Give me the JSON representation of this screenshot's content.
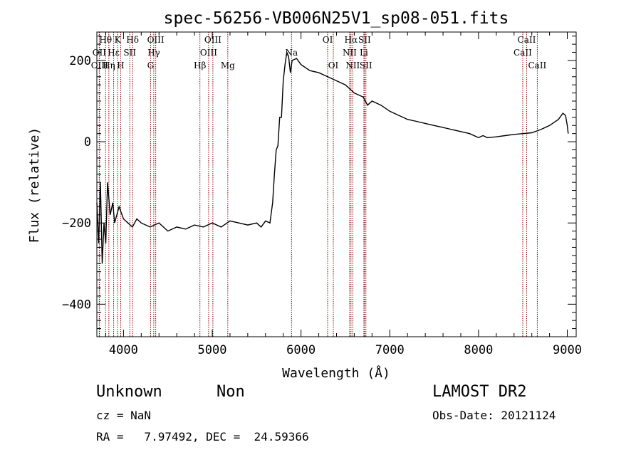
{
  "chart_data": {
    "type": "line",
    "title": "spec-56256-VB006N25V1_sp08-051.fits",
    "xlabel": "Wavelength (Å)",
    "ylabel": "Flux (relative)",
    "xlim": [
      3700,
      9100
    ],
    "ylim": [
      -480,
      270
    ],
    "xticks": [
      4000,
      5000,
      6000,
      7000,
      8000,
      9000
    ],
    "xtick_labels": [
      "4000",
      "5000",
      "6000",
      "7000",
      "8000",
      "9000"
    ],
    "yticks": [
      -400,
      -200,
      0,
      200
    ],
    "ytick_labels": [
      "−400",
      "−200",
      "0",
      "200"
    ],
    "series": [
      {
        "color": "#000000",
        "x": [
          3700,
          3720,
          3740,
          3760,
          3780,
          3800,
          3820,
          3850,
          3880,
          3900,
          3950,
          4000,
          4050,
          4100,
          4150,
          4200,
          4300,
          4400,
          4500,
          4600,
          4700,
          4800,
          4900,
          5000,
          5100,
          5200,
          5300,
          5400,
          5500,
          5550,
          5600,
          5650,
          5680,
          5700,
          5720,
          5740,
          5760,
          5780,
          5800,
          5820,
          5840,
          5860,
          5880,
          5900,
          5950,
          6000,
          6100,
          6200,
          6300,
          6400,
          6500,
          6600,
          6700,
          6750,
          6800,
          6900,
          7000,
          7100,
          7200,
          7300,
          7400,
          7500,
          7600,
          7700,
          7800,
          7900,
          8000,
          8050,
          8100,
          8200,
          8300,
          8400,
          8500,
          8600,
          8700,
          8800,
          8900,
          8950,
          8980,
          9000,
          9010
        ],
        "y": [
          -150,
          -250,
          -100,
          -300,
          -200,
          -250,
          -100,
          -180,
          -150,
          -200,
          -160,
          -190,
          -200,
          -210,
          -190,
          -200,
          -210,
          -200,
          -220,
          -210,
          -215,
          -205,
          -210,
          -200,
          -210,
          -195,
          -200,
          -205,
          -200,
          -210,
          -195,
          -200,
          -150,
          -80,
          -20,
          -10,
          60,
          60,
          150,
          190,
          220,
          210,
          170,
          200,
          205,
          190,
          175,
          170,
          160,
          150,
          140,
          120,
          110,
          90,
          100,
          90,
          75,
          65,
          55,
          50,
          45,
          40,
          35,
          30,
          25,
          20,
          10,
          15,
          10,
          12,
          15,
          18,
          20,
          22,
          30,
          40,
          55,
          70,
          65,
          40,
          20
        ]
      }
    ],
    "lines": [
      {
        "label": "Hθ",
        "x": 3798,
        "row": 0
      },
      {
        "label": "OII",
        "x": 3727,
        "row": 1
      },
      {
        "label": "OIII",
        "x": 3730,
        "row": 2
      },
      {
        "label": "K",
        "x": 3934,
        "row": 0
      },
      {
        "label": "H",
        "x": 3969,
        "row": 2
      },
      {
        "label": "Hε",
        "x": 3889,
        "row": 1
      },
      {
        "label": "Hη",
        "x": 3835,
        "row": 2
      },
      {
        "label": "SII",
        "x": 4071,
        "row": 1
      },
      {
        "label": "Hδ",
        "x": 4102,
        "row": 0
      },
      {
        "label": "OIII",
        "x": 4363,
        "row": 0
      },
      {
        "label": "Hγ",
        "x": 4341,
        "row": 1
      },
      {
        "label": "G",
        "x": 4305,
        "row": 2
      },
      {
        "label": "Hβ",
        "x": 4861,
        "row": 2
      },
      {
        "label": "OIII",
        "x": 4959,
        "row": 1
      },
      {
        "label": "OIII",
        "x": 5007,
        "row": 0
      },
      {
        "label": "Mg",
        "x": 5175,
        "row": 2
      },
      {
        "label": "Na",
        "x": 5893,
        "row": 1
      },
      {
        "label": "OI",
        "x": 6300,
        "row": 0
      },
      {
        "label": "OI",
        "x": 6364,
        "row": 2
      },
      {
        "label": "NII",
        "x": 6548,
        "row": 1
      },
      {
        "label": "Hα",
        "x": 6563,
        "row": 0
      },
      {
        "label": "NII",
        "x": 6583,
        "row": 2
      },
      {
        "label": "Li",
        "x": 6708,
        "row": 1
      },
      {
        "label": "SII",
        "x": 6716,
        "row": 0
      },
      {
        "label": "SII",
        "x": 6731,
        "row": 2
      },
      {
        "label": "CaII",
        "x": 8498,
        "row": 1
      },
      {
        "label": "CaII",
        "x": 8542,
        "row": 0
      },
      {
        "label": "CaII",
        "x": 8662,
        "row": 2
      }
    ],
    "line_color": "#8b0000"
  },
  "info": {
    "class": "Unknown",
    "subclass": "Non",
    "survey": "LAMOST DR2",
    "cz": "cz = NaN",
    "obs_date": "Obs-Date: 20121124",
    "coords": "RA =   7.97492, DEC =  24.59366"
  }
}
